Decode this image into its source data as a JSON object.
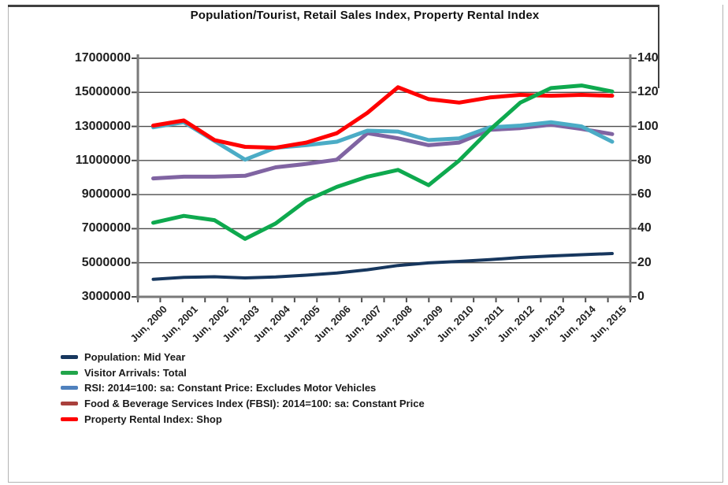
{
  "chart_data": {
    "type": "line",
    "title": "Population/Tourist, Retail Sales Index, Property Rental Index",
    "x_labels": [
      "Jun, 2000",
      "Jun, 2001",
      "Jun, 2002",
      "Jun, 2003",
      "Jun, 2004",
      "Jun, 2005",
      "Jun, 2006",
      "Jun, 2007",
      "Jun, 2008",
      "Jun, 2009",
      "Jun, 2010",
      "Jun, 2011",
      "Jun, 2012",
      "Jun, 2013",
      "Jun, 2014",
      "Jun, 2015"
    ],
    "left_axis": {
      "min": 3000000,
      "max": 17000000,
      "step": 2000000,
      "ticks": [
        "17000000",
        "15000000",
        "13000000",
        "11000000",
        "9000000",
        "7000000",
        "5000000",
        "3000000"
      ]
    },
    "right_axis": {
      "min": 0,
      "max": 140,
      "step": 20,
      "ticks": [
        "140",
        "120",
        "100",
        "80",
        "60",
        "40",
        "20",
        "0"
      ]
    },
    "grid": "horizontal",
    "legend_position": "bottom-left",
    "colors": {
      "grid": "#4d4d4d",
      "axis": "#7a7a7a",
      "text": "#1f1f1f"
    },
    "series": [
      {
        "label": "Population: Mid Year",
        "axis": "left",
        "color": "#17375E",
        "legend_color": "#17375E",
        "width": 4,
        "z": 5,
        "values": [
          4030000,
          4140000,
          4180000,
          4110000,
          4170000,
          4270000,
          4400000,
          4590000,
          4840000,
          4990000,
          5080000,
          5180000,
          5310000,
          5400000,
          5470000,
          5540000
        ]
      },
      {
        "label": "Visitor Arrivals: Total",
        "axis": "left",
        "color": "#0EA94E",
        "legend_color": "#21A54A",
        "width": 5,
        "z": 4,
        "values": [
          7350000,
          7750000,
          7500000,
          6400000,
          7300000,
          8650000,
          9450000,
          10050000,
          10450000,
          9550000,
          11000000,
          12800000,
          14400000,
          15250000,
          15400000,
          15050000
        ]
      },
      {
        "label": "RSI: 2014=100: sa: Constant Price: Excludes Motor Vehicles",
        "axis": "right",
        "color": "#4BACC6",
        "legend_color": "#4F81BD",
        "width": 5,
        "z": 2,
        "values": [
          99.5,
          102.5,
          91.5,
          80.5,
          87.5,
          89,
          91,
          97.5,
          97,
          92,
          93,
          99.5,
          100.5,
          102.5,
          100,
          91
        ]
      },
      {
        "label": "Food & Beverage Services Index (FBSI): 2014=100: sa: Constant Price",
        "axis": "right",
        "color": "#8064A2",
        "legend_color": "#A9403C",
        "width": 5,
        "z": 1,
        "values": [
          69.5,
          70.5,
          70.5,
          71,
          76,
          78,
          80.5,
          96,
          93,
          89,
          90.5,
          98,
          99,
          101,
          98.5,
          95.5
        ]
      },
      {
        "label": "Property Rental Index: Shop",
        "axis": "right",
        "color": "#FF0000",
        "legend_color": "#FF0000",
        "width": 5,
        "z": 3,
        "values": [
          100.5,
          103.5,
          92,
          88,
          87.5,
          90.5,
          96,
          108,
          123,
          116,
          114,
          117,
          118.5,
          118,
          118.5,
          118
        ]
      }
    ]
  }
}
